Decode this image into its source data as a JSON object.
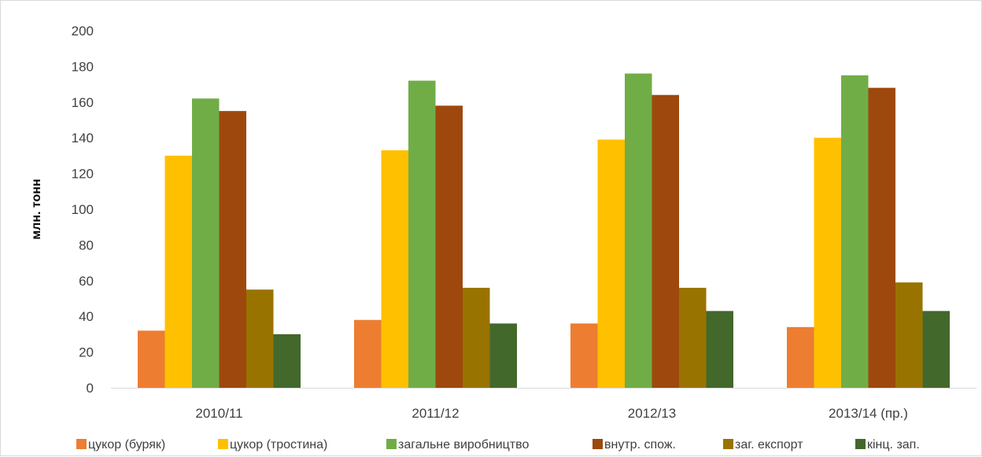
{
  "chart_data": {
    "type": "bar",
    "title": "",
    "xlabel": "",
    "ylabel": "млн. тонн",
    "ylim": [
      0,
      200
    ],
    "yticks": [
      0,
      20,
      40,
      60,
      80,
      100,
      120,
      140,
      160,
      180,
      200
    ],
    "grid": false,
    "legend_position": "bottom",
    "categories": [
      "2010/11",
      "2011/12",
      "2012/13",
      "2013/14 (пр.)"
    ],
    "series": [
      {
        "name": "цукор (буряк)",
        "color": "#ED7D31",
        "values": [
          32,
          38,
          36,
          34
        ]
      },
      {
        "name": "цукор (тростина)",
        "color": "#FFC000",
        "values": [
          130,
          133,
          139,
          140
        ]
      },
      {
        "name": "загальне виробництво",
        "color": "#70AD47",
        "values": [
          162,
          172,
          176,
          175
        ]
      },
      {
        "name": "внутр. спож.",
        "color": "#9E480E",
        "values": [
          155,
          158,
          164,
          168
        ]
      },
      {
        "name": "заг. експорт",
        "color": "#997300",
        "values": [
          55,
          56,
          56,
          59
        ]
      },
      {
        "name": "кінц. зап.",
        "color": "#43682B",
        "values": [
          30,
          36,
          43,
          43
        ]
      }
    ]
  }
}
